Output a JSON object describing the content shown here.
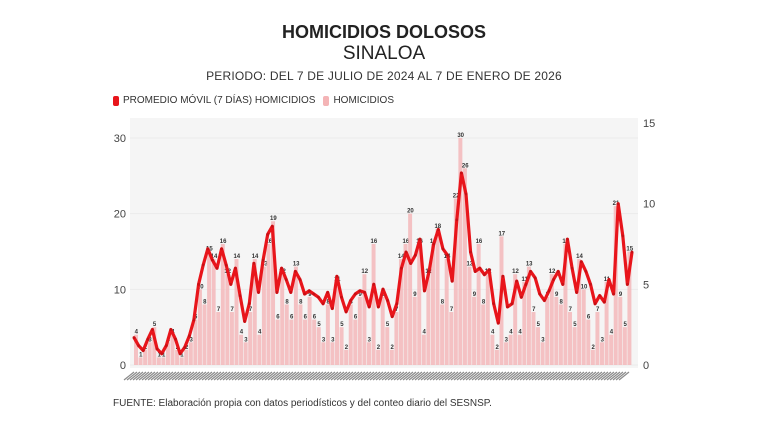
{
  "chart_data": {
    "type": "bar",
    "title": "HOMICIDIOS DOLOSOS",
    "subtitle": "SINALOA",
    "period": "PERIODO: DEL 7 DE JULIO DE 2024 AL 7 DE ENERO DE 2026",
    "legend": [
      {
        "label": "PROMEDIO MÓVIL (7 DÍAS) HOMICIDIOS",
        "color": "#e8151b"
      },
      {
        "label": "HOMICIDIOS",
        "color": "#f4b4b6"
      }
    ],
    "legend_position": "top-left",
    "grid": true,
    "y_left": {
      "ticks": [
        "0",
        "10",
        "20",
        "30"
      ],
      "range": [
        0,
        30
      ]
    },
    "y_right": {
      "ticks": [
        "0",
        "5",
        "10",
        "15"
      ],
      "range": [
        0,
        15
      ]
    },
    "series": [
      {
        "name": "HOMICIDIOS",
        "type": "bar",
        "axis": "left",
        "color": "#f4b4b6",
        "values": [
          4,
          1,
          2,
          3,
          5,
          1,
          1,
          3,
          4,
          2,
          1,
          2,
          3,
          6,
          10,
          8,
          15,
          14,
          7,
          16,
          12,
          7,
          14,
          4,
          3,
          7,
          14,
          4,
          13,
          16,
          19,
          6,
          12,
          8,
          6,
          13,
          8,
          6,
          9,
          6,
          5,
          3,
          8,
          3,
          11,
          5,
          2,
          8,
          6,
          9,
          12,
          3,
          16,
          2,
          9,
          5,
          2,
          7,
          14,
          16,
          20,
          9,
          16,
          4,
          12,
          16,
          18,
          8,
          14,
          7,
          22,
          30,
          26,
          13,
          9,
          16,
          8,
          12,
          4,
          2,
          17,
          3,
          4,
          12,
          4,
          11,
          13,
          7,
          5,
          3,
          9,
          12,
          9,
          8,
          16,
          7,
          5,
          14,
          10,
          6,
          2,
          7,
          3,
          11,
          4,
          21,
          9,
          5,
          15
        ]
      },
      {
        "name": "PROMEDIO MÓVIL (7 DÍAS) HOMICIDIOS",
        "type": "line",
        "axis": "right",
        "color": "#e8151b",
        "values": [
          1.7,
          1.2,
          0.9,
          1.6,
          2.2,
          1.0,
          0.7,
          1.2,
          2.2,
          1.6,
          0.7,
          1.1,
          1.8,
          2.8,
          5.0,
          6.2,
          7.2,
          6.5,
          6.0,
          7.2,
          6.2,
          5.0,
          6.0,
          4.3,
          2.7,
          3.8,
          6.3,
          4.5,
          6.5,
          8.1,
          8.6,
          4.5,
          6.0,
          5.3,
          4.5,
          5.8,
          5.3,
          4.4,
          4.6,
          4.4,
          4.2,
          3.8,
          4.5,
          3.5,
          5.5,
          4.2,
          3.3,
          4.0,
          4.4,
          4.6,
          4.5,
          3.6,
          5.0,
          3.6,
          4.7,
          4.0,
          3.0,
          3.8,
          6.0,
          7.0,
          6.3,
          6.8,
          7.8,
          4.6,
          5.8,
          7.5,
          8.4,
          7.2,
          6.8,
          5.2,
          9.0,
          11.9,
          10.6,
          7.0,
          5.8,
          6.0,
          5.6,
          5.9,
          3.8,
          2.6,
          5.5,
          3.6,
          3.8,
          5.2,
          4.2,
          5.0,
          5.8,
          5.4,
          4.4,
          4.0,
          4.6,
          5.3,
          5.8,
          5.0,
          7.8,
          6.0,
          4.5,
          6.4,
          5.8,
          5.0,
          3.8,
          4.3,
          3.9,
          5.3,
          4.4,
          10.0,
          8.0,
          5.0,
          7.0
        ]
      }
    ]
  },
  "footer": "FUENTE: Elaboración propia con datos periodísticos y del conteo diario del SESNSP."
}
